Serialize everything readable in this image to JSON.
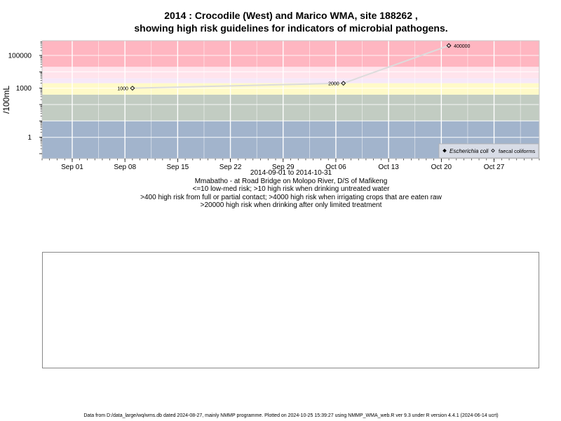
{
  "title": {
    "line1": "2014 : Crocodile (West) and Marico WMA, site 188262 ,",
    "line2": "showing high risk guidelines for indicators of microbial pathogens."
  },
  "captions": {
    "date_range": "2014-09-01 to 2014-10-31",
    "site": "Mmabatho - at Road Bridge on Molopo River, D/S of Mafikeng",
    "guideline1": "<=10 low-med risk; >10 high risk when drinking untreated water",
    "guideline2": ">400 high risk from full or partial contact; >4000 high risk when irrigating crops that are eaten raw",
    "guideline3": ">20000 high risk when drinking after only limited treatment"
  },
  "footer": "Data from D:/data_large/wq/wms.db dated 2024-08-27, mainly NMMP programme. Plotted on 2024-10-25 15:39:27 using NMMP_WMA_web.R ver 9.3 under R version 4.4.1 (2024-06-14 ucrt)",
  "colors": {
    "band_red": "#ffb6c1",
    "band_pink": "#ffe4ec",
    "band_lavender": "#f6e8f8",
    "band_yellow": "#fffac8",
    "band_green": "#c2ccc2",
    "band_blue": "#a2b4cc",
    "grid": "#ffffff",
    "line": "#dcdcdc",
    "legend_bg": "#d8dce6"
  },
  "chart_data": {
    "type": "line",
    "log_scale_y": true,
    "ylabel": "/100mL",
    "xlabel": "",
    "grid": true,
    "legend_position": "bottom-right",
    "xlim": [
      "2014-08-28",
      "2014-11-02"
    ],
    "ylim_log10": [
      -1.3,
      5.9
    ],
    "x_ticks": [
      {
        "date": "2014-09-01",
        "label": "Sep 01"
      },
      {
        "date": "2014-09-08",
        "label": "Sep 08"
      },
      {
        "date": "2014-09-15",
        "label": "Sep 15"
      },
      {
        "date": "2014-09-22",
        "label": "Sep 22"
      },
      {
        "date": "2014-09-29",
        "label": "Sep 29"
      },
      {
        "date": "2014-10-06",
        "label": "Oct 06"
      },
      {
        "date": "2014-10-13",
        "label": "Oct 13"
      },
      {
        "date": "2014-10-20",
        "label": "Oct 20"
      },
      {
        "date": "2014-10-27",
        "label": "Oct 27"
      }
    ],
    "y_ticks": [
      {
        "value": 1,
        "label": "1"
      },
      {
        "value": 1000,
        "label": "1000"
      },
      {
        "value": 100000,
        "label": "100000"
      }
    ],
    "risk_bands": [
      {
        "from": 20000,
        "to": 1000000,
        "color_key": "band_red"
      },
      {
        "from": 4000,
        "to": 20000,
        "color_key": "band_pink"
      },
      {
        "from": 2000,
        "to": 4000,
        "color_key": "band_lavender"
      },
      {
        "from": 400,
        "to": 2000,
        "color_key": "band_yellow"
      },
      {
        "from": 10,
        "to": 400,
        "color_key": "band_green"
      },
      {
        "from": 0.01,
        "to": 10,
        "color_key": "band_blue"
      }
    ],
    "series": [
      {
        "name": "Escherichia coli",
        "marker": "filled-diamond",
        "points": []
      },
      {
        "name": "faecal coliforms",
        "marker": "open-diamond",
        "points": [
          {
            "date": "2014-09-09",
            "value": 1000,
            "label": "1000"
          },
          {
            "date": "2014-10-07",
            "value": 2000,
            "label": "2000"
          },
          {
            "date": "2014-10-21",
            "value": 400000,
            "label": "400000"
          }
        ]
      }
    ]
  }
}
